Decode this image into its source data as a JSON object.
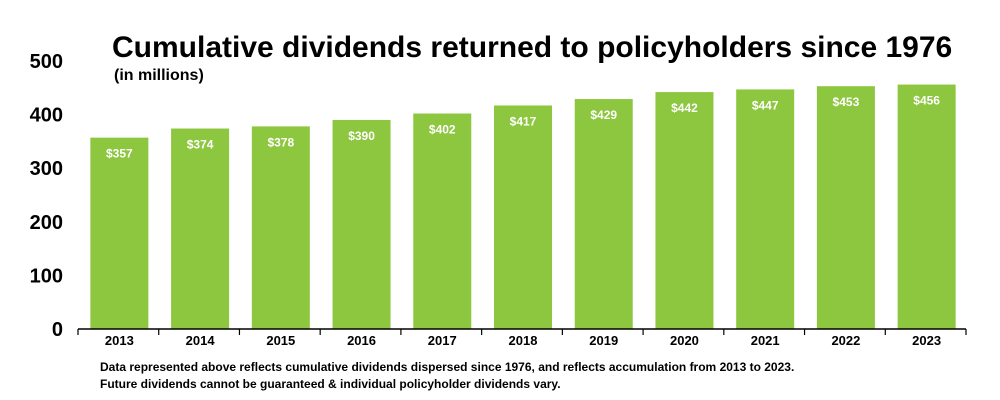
{
  "chart_data": {
    "type": "bar",
    "title": "Cumulative dividends returned to policyholders since 1976",
    "subtitle": "(in millions)",
    "xlabel": "",
    "ylabel": "",
    "categories": [
      "2013",
      "2014",
      "2015",
      "2016",
      "2017",
      "2018",
      "2019",
      "2020",
      "2021",
      "2022",
      "2023"
    ],
    "values": [
      357,
      374,
      378,
      390,
      402,
      417,
      429,
      442,
      447,
      453,
      456
    ],
    "data_labels": [
      "$357",
      "$374",
      "$378",
      "$390",
      "$402",
      "$417",
      "$429",
      "$442",
      "$447",
      "$453",
      "$456"
    ],
    "yticks": [
      0,
      100,
      200,
      300,
      400,
      500
    ],
    "ylim": [
      0,
      500
    ],
    "grid": false,
    "legend": "none",
    "bar_color": "#8dc63f",
    "footnotes": [
      "Data represented above reflects cumulative dividends dispersed since 1976, and reflects accumulation from 2013 to 2023.",
      "Future dividends cannot be guaranteed & individual policyholder dividends vary."
    ]
  }
}
